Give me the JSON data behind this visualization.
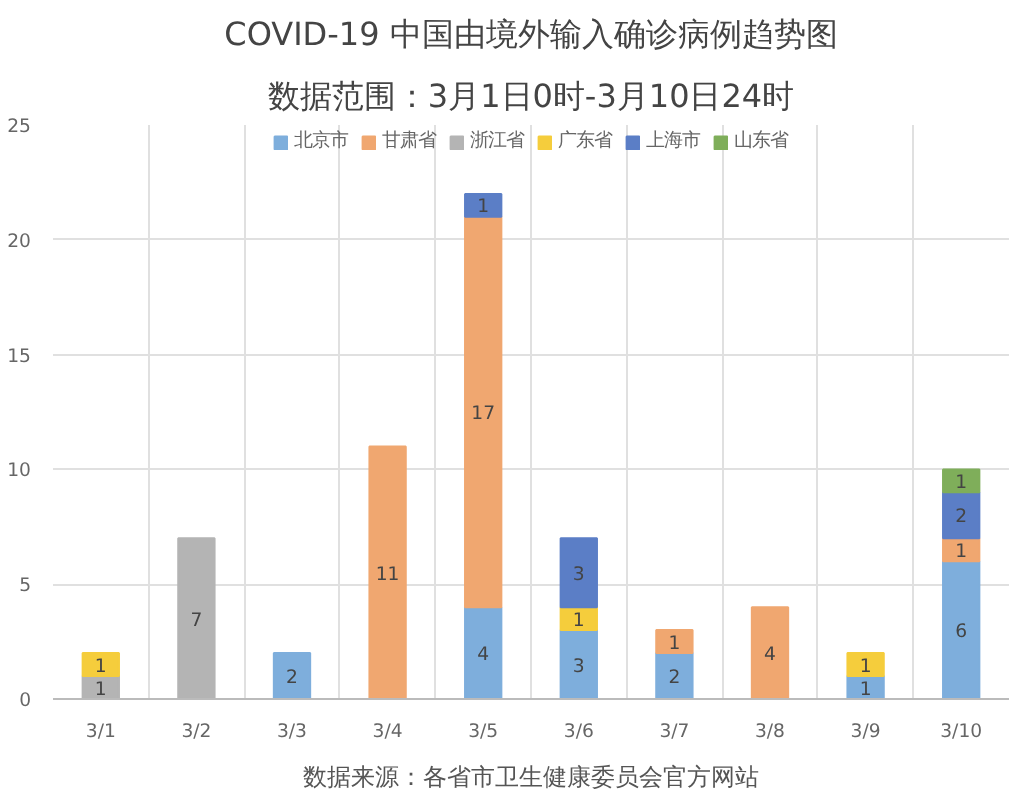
{
  "chart_data": {
    "type": "bar",
    "title": "COVID-19 中国由境外输入确诊病例趋势图",
    "subtitle": "数据范围：3月1日0时-3月10日24时",
    "categories": [
      "3/1",
      "3/2",
      "3/3",
      "3/4",
      "3/5",
      "3/6",
      "3/7",
      "3/8",
      "3/9",
      "3/10"
    ],
    "stacked": true,
    "series": [
      {
        "name": "北京市",
        "color": "#7eaedc",
        "values": [
          null,
          null,
          2,
          null,
          4,
          3,
          2,
          null,
          1,
          6
        ]
      },
      {
        "name": "甘肃省",
        "color": "#f0a770",
        "values": [
          null,
          null,
          null,
          11,
          17,
          null,
          1,
          4,
          null,
          1
        ]
      },
      {
        "name": "浙江省",
        "color": "#b4b4b4",
        "values": [
          1,
          7,
          null,
          null,
          null,
          null,
          null,
          null,
          null,
          null
        ]
      },
      {
        "name": "广东省",
        "color": "#f5cd3c",
        "values": [
          1,
          null,
          null,
          null,
          null,
          1,
          null,
          null,
          1,
          null
        ]
      },
      {
        "name": "上海市",
        "color": "#5b7ec6",
        "values": [
          null,
          null,
          null,
          null,
          1,
          3,
          null,
          null,
          null,
          2
        ]
      },
      {
        "name": "山东省",
        "color": "#7fae5a",
        "values": [
          null,
          null,
          null,
          null,
          null,
          null,
          null,
          null,
          null,
          1
        ]
      }
    ],
    "ylim": [
      0,
      25
    ],
    "yticks": [
      0,
      5,
      10,
      15,
      20,
      25
    ],
    "grid": true,
    "legend": "top",
    "data_labels": true,
    "annotations": [
      "数据来源：各省市卫生健康委员会官方网站"
    ]
  }
}
